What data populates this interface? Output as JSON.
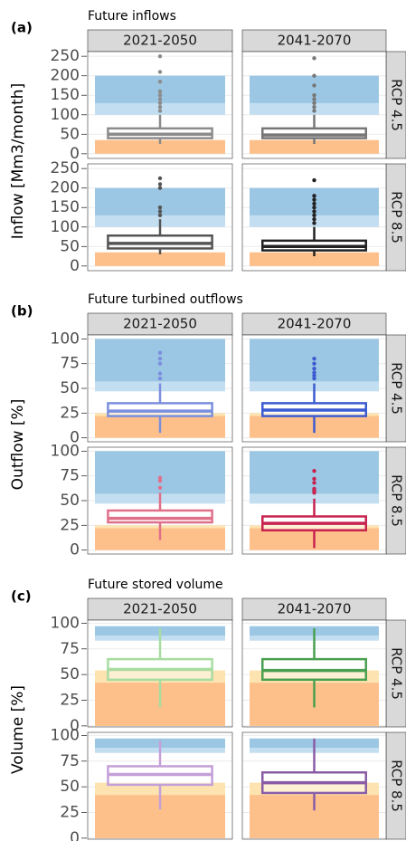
{
  "chart_data": [
    {
      "type": "box",
      "panel_label": "(a)",
      "title": "Future inflows",
      "ylabel": "Inflow [Mm3/month]",
      "columns": [
        "2021-2050",
        "2041-2070"
      ],
      "rows": [
        "RCP 4.5",
        "RCP 8.5"
      ],
      "ylim": [
        -12,
        262
      ],
      "yticks": [
        0,
        50,
        100,
        150,
        200,
        250
      ],
      "grid": true,
      "bands": [
        {
          "from": 0,
          "to": 35,
          "color": "#fdc08a"
        },
        {
          "from": 100,
          "to": 200,
          "color": "#c3def0"
        },
        {
          "from": 130,
          "to": 200,
          "color": "#9bc7e4"
        }
      ],
      "boxes": [
        [
          {
            "color": "#8c8c8c",
            "whisker_low": 25,
            "q1": 40,
            "median": 50,
            "q3": 65,
            "whisker_high": 100,
            "outliers": [
              110,
              120,
              130,
              140,
              150,
              160,
              185,
              210,
              250
            ]
          },
          {
            "color": "#777777",
            "whisker_low": 25,
            "q1": 40,
            "median": 48,
            "q3": 65,
            "whisker_high": 100,
            "outliers": [
              110,
              120,
              130,
              140,
              150,
              175,
              200,
              245
            ]
          }
        ],
        [
          {
            "color": "#555555",
            "whisker_low": 30,
            "q1": 45,
            "median": 58,
            "q3": 78,
            "whisker_high": 120,
            "outliers": [
              130,
              140,
              150,
              200,
              210,
              225
            ]
          },
          {
            "color": "#222222",
            "whisker_low": 25,
            "q1": 40,
            "median": 50,
            "q3": 65,
            "whisker_high": 100,
            "outliers": [
              110,
              120,
              130,
              140,
              150,
              160,
              170,
              180,
              220
            ]
          }
        ]
      ]
    },
    {
      "type": "box",
      "panel_label": "(b)",
      "title": "Future turbined outflows",
      "ylabel": "Outflow [%]",
      "columns": [
        "2021-2050",
        "2041-2070"
      ],
      "rows": [
        "RCP 4.5",
        "RCP 8.5"
      ],
      "ylim": [
        -4,
        104
      ],
      "yticks": [
        0,
        25,
        50,
        75,
        100
      ],
      "grid": true,
      "bands": [
        {
          "from": 0,
          "to": 25,
          "color": "#fde3b0"
        },
        {
          "from": 0,
          "to": 22,
          "color": "#fdc08a"
        },
        {
          "from": 47,
          "to": 100,
          "color": "#c3def0"
        },
        {
          "from": 57,
          "to": 100,
          "color": "#9bc7e4"
        }
      ],
      "boxes": [
        [
          {
            "color": "#7b8fdd",
            "whisker_low": 5,
            "q1": 22,
            "median": 27,
            "q3": 35,
            "whisker_high": 55,
            "outliers": [
              60,
              65,
              75,
              80,
              86
            ]
          },
          {
            "color": "#3d5bd0",
            "whisker_low": 5,
            "q1": 22,
            "median": 28,
            "q3": 35,
            "whisker_high": 55,
            "outliers": [
              60,
              63,
              66,
              70,
              75,
              80
            ]
          }
        ],
        [
          {
            "color": "#e0708a",
            "whisker_low": 10,
            "q1": 28,
            "median": 32,
            "q3": 40,
            "whisker_high": 58,
            "outliers": [
              63,
              70,
              73
            ]
          },
          {
            "color": "#c8234f",
            "whisker_low": 2,
            "q1": 20,
            "median": 27,
            "q3": 34,
            "whisker_high": 52,
            "outliers": [
              58,
              60,
              62,
              68,
              72,
              80
            ]
          }
        ]
      ]
    },
    {
      "type": "box",
      "panel_label": "(c)",
      "title": "Future stored volume",
      "ylabel": "Volume [%]",
      "columns": [
        "2021-2050",
        "2041-2070"
      ],
      "rows": [
        "RCP 4.5",
        "RCP 8.5"
      ],
      "ylim": [
        -1,
        103
      ],
      "yticks": [
        0,
        25,
        50,
        75,
        100
      ],
      "grid": true,
      "bands": [
        {
          "from": 0,
          "to": 54,
          "color": "#fde3b0"
        },
        {
          "from": 0,
          "to": 42,
          "color": "#fdc08a"
        },
        {
          "from": 83,
          "to": 97,
          "color": "#c3def0"
        },
        {
          "from": 88,
          "to": 97,
          "color": "#9bc7e4"
        }
      ],
      "boxes": [
        [
          {
            "color": "#a8dca0",
            "whisker_low": 18,
            "q1": 45,
            "median": 55,
            "q3": 65,
            "whisker_high": 95,
            "outliers": []
          },
          {
            "color": "#4aa050",
            "whisker_low": 18,
            "q1": 45,
            "median": 54,
            "q3": 65,
            "whisker_high": 95,
            "outliers": []
          }
        ],
        [
          {
            "color": "#c4a0d8",
            "whisker_low": 28,
            "q1": 52,
            "median": 62,
            "q3": 70,
            "whisker_high": 95,
            "outliers": []
          },
          {
            "color": "#8a5ca6",
            "whisker_low": 27,
            "q1": 44,
            "median": 54,
            "q3": 64,
            "whisker_high": 97,
            "outliers": []
          }
        ]
      ]
    }
  ]
}
